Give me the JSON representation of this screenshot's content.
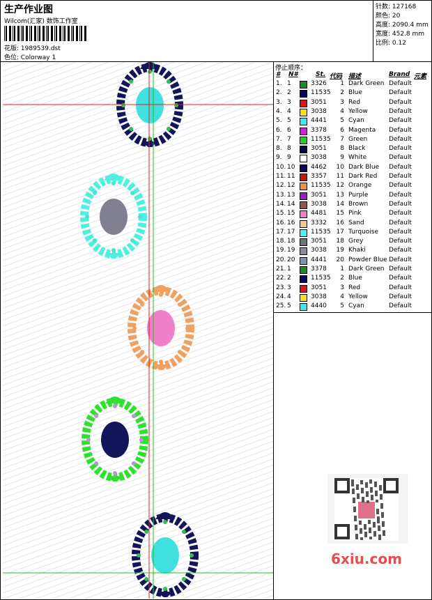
{
  "header": {
    "title": "生产作业图",
    "studio": "Wilcom(汇家) 数饰工作室",
    "design": "花版: 1989539.dst",
    "colorway": "色位: Colorway 1"
  },
  "stats": [
    "针数: 127168",
    "颜色: 20",
    "高度: 2090.4 mm",
    "宽度: 452.8 mm",
    "比例: 0.12"
  ],
  "table": {
    "title": "停止顺序：",
    "columns": [
      "#",
      "N#",
      "St.",
      "代码",
      "描述",
      "Brand",
      "元素"
    ],
    "rows": [
      [
        "1.",
        "1",
        "#1a8a2a",
        "3326",
        "1",
        "Dark Green",
        "Default"
      ],
      [
        "2.",
        "2",
        "#0a0a5a",
        "11535",
        "2",
        "Blue",
        "Default"
      ],
      [
        "3.",
        "3",
        "#d81818",
        "3051",
        "3",
        "Red",
        "Default"
      ],
      [
        "4.",
        "4",
        "#f4e020",
        "3038",
        "4",
        "Yellow",
        "Default"
      ],
      [
        "5.",
        "5",
        "#40e8e8",
        "4441",
        "5",
        "Cyan",
        "Default"
      ],
      [
        "6.",
        "6",
        "#d020d8",
        "3378",
        "6",
        "Magenta",
        "Default"
      ],
      [
        "7.",
        "7",
        "#20d020",
        "11535",
        "7",
        "Green",
        "Default"
      ],
      [
        "8.",
        "8",
        "#0a0a40",
        "3051",
        "8",
        "Black",
        "Default"
      ],
      [
        "9.",
        "9",
        "#ffffff",
        "3038",
        "9",
        "White",
        "Default"
      ],
      [
        "10.",
        "10",
        "#0a0a60",
        "4462",
        "10",
        "Dark Blue",
        "Default"
      ],
      [
        "11.",
        "11",
        "#c01818",
        "3357",
        "11",
        "Dark Red",
        "Default"
      ],
      [
        "12.",
        "12",
        "#f09040",
        "11535",
        "12",
        "Orange",
        "Default"
      ],
      [
        "13.",
        "13",
        "#9820c8",
        "3051",
        "13",
        "Purple",
        "Default"
      ],
      [
        "14.",
        "14",
        "#905848",
        "3038",
        "14",
        "Brown",
        "Default"
      ],
      [
        "15.",
        "15",
        "#f080c8",
        "4481",
        "15",
        "Pink",
        "Default"
      ],
      [
        "16.",
        "16",
        "#f0c890",
        "3332",
        "16",
        "Sand",
        "Default"
      ],
      [
        "17.",
        "17",
        "#50f0f0",
        "11535",
        "17",
        "Turquoise",
        "Default"
      ],
      [
        "18.",
        "18",
        "#707080",
        "3051",
        "18",
        "Grey",
        "Default"
      ],
      [
        "19.",
        "19",
        "#8a8a98",
        "3038",
        "19",
        "Khaki",
        "Default"
      ],
      [
        "20.",
        "20",
        "#8090b0",
        "4441",
        "20",
        "Powder Blue",
        "Default"
      ],
      [
        "21.",
        "1",
        "#1a8a2a",
        "3378",
        "1",
        "Dark Green",
        "Default"
      ],
      [
        "22.",
        "2",
        "#0a0a5a",
        "11535",
        "2",
        "Blue",
        "Default"
      ],
      [
        "23.",
        "3",
        "#d81818",
        "3051",
        "3",
        "Red",
        "Default"
      ],
      [
        "24.",
        "4",
        "#f4e020",
        "3038",
        "4",
        "Yellow",
        "Default"
      ],
      [
        "25.",
        "5",
        "#40e8e8",
        "4440",
        "5",
        "Cyan",
        "Default"
      ]
    ]
  },
  "watermark": "6xiu.com"
}
